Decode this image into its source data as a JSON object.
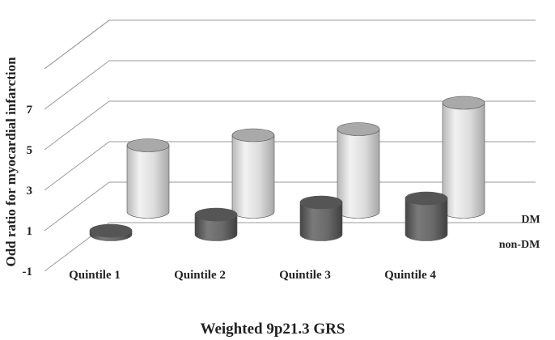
{
  "chart_data": {
    "type": "bar",
    "style": "3d-cylinder",
    "categories": [
      "Quintile 1",
      "Quintile 2",
      "Quintile 3",
      "Quintile 4"
    ],
    "series": [
      {
        "name": "non-DM",
        "values": [
          1.0,
          1.8,
          2.4,
          2.6
        ],
        "color": "#666666"
      },
      {
        "name": "DM",
        "values": [
          4.1,
          4.6,
          4.9,
          6.2
        ],
        "color": "#d4d4d4"
      }
    ],
    "xlabel": "Weighted 9p21.3 GRS",
    "ylabel": "Odd ratio for myocardial infarction",
    "ylim": [
      -1,
      7
    ],
    "yticks": [
      "-1",
      "1",
      "3",
      "5",
      "7"
    ],
    "grid": true,
    "legend": "series labels on depth axis at right"
  }
}
